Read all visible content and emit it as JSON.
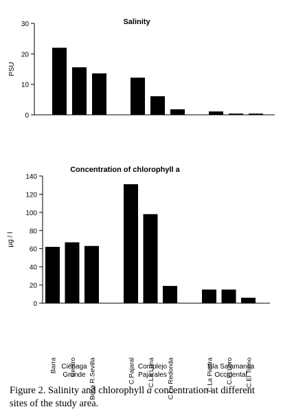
{
  "chart_data": [
    {
      "type": "bar",
      "title": "Salinity",
      "ylabel": "PSU",
      "xlabel": "",
      "ylim": [
        0,
        30
      ],
      "yticks": [
        0,
        10,
        20,
        30
      ],
      "categories": [
        "Barra",
        "Centro",
        "Boca R.Sevilla",
        "C.Pajaral",
        "C.La Luna",
        "C.La Redonda",
        "C.La Piedra",
        "C.El Loro",
        "C.El Torno"
      ],
      "values": [
        22,
        15.6,
        13.6,
        12.2,
        6.1,
        1.8,
        1.1,
        0.4,
        0.4
      ],
      "groups": [
        {
          "label_line1": "Ciénaga",
          "label_line2": "Grande",
          "members": [
            0,
            1,
            2
          ]
        },
        {
          "label_line1": "Complejo",
          "label_line2": "Pajarales",
          "members": [
            3,
            4,
            5
          ]
        },
        {
          "label_line1": "Isla Salamanca",
          "label_line2": "Occidental",
          "members": [
            6,
            7,
            8
          ]
        }
      ],
      "grid": false,
      "bar_color": "#000000"
    },
    {
      "type": "bar",
      "title": "Concentration  of  chlorophyll a",
      "ylabel": "µg / l",
      "xlabel": "",
      "ylim": [
        0,
        140
      ],
      "yticks": [
        0,
        20,
        40,
        60,
        80,
        100,
        120,
        140
      ],
      "categories": [
        "Barra",
        "Centro",
        "Boca R.Sevilla",
        "C.Pajaral",
        "C.La Luna",
        "C.La Redonda",
        "C.La Piedra",
        "C.El Loro",
        "C.El Torno"
      ],
      "values": [
        62,
        67,
        63,
        131,
        98,
        19,
        15,
        15,
        6
      ],
      "groups": [
        {
          "label_line1": "Ciénaga",
          "label_line2": "Grande",
          "members": [
            0,
            1,
            2
          ]
        },
        {
          "label_line1": "Complejo",
          "label_line2": "Pajarales",
          "members": [
            3,
            4,
            5
          ]
        },
        {
          "label_line1": "Isla Salamanca",
          "label_line2": "Occidental",
          "members": [
            6,
            7,
            8
          ]
        }
      ],
      "grid": false,
      "bar_color": "#000000"
    }
  ],
  "caption": {
    "part1": "Figure 2. Salinity and chlorophyll ",
    "italic": "a",
    "part2": " concentration at different",
    "line2": "sites of the study area."
  }
}
